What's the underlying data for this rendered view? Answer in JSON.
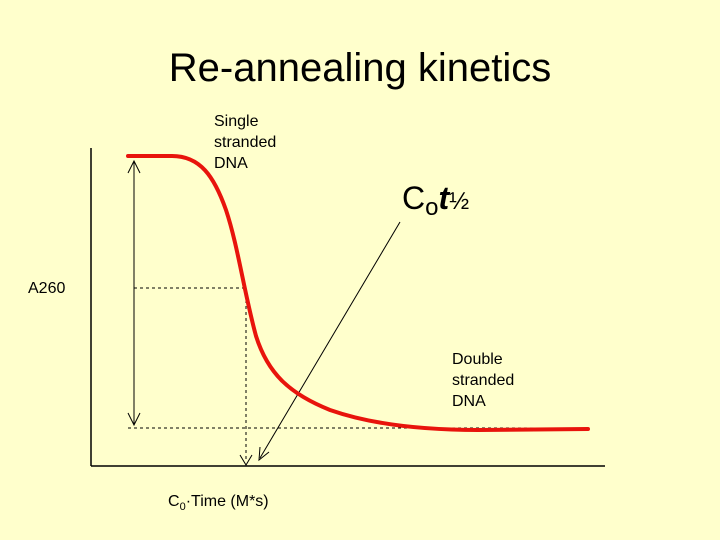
{
  "title": "Re-annealing kinetics",
  "labels": {
    "single_stranded": [
      "Single",
      "stranded",
      "DNA"
    ],
    "double_stranded": [
      "Double",
      "stranded",
      "DNA"
    ],
    "y_axis": "A260",
    "x_axis": {
      "c": "C",
      "sub": "0",
      "dot": "·",
      "rest": "Time (M*s)"
    },
    "cot_half": {
      "c": "C",
      "sub": "o",
      "t": "t",
      "half": "½"
    }
  },
  "colors": {
    "background": "#ffffcc",
    "curve": "#e8140c",
    "lines": "#000000"
  }
}
